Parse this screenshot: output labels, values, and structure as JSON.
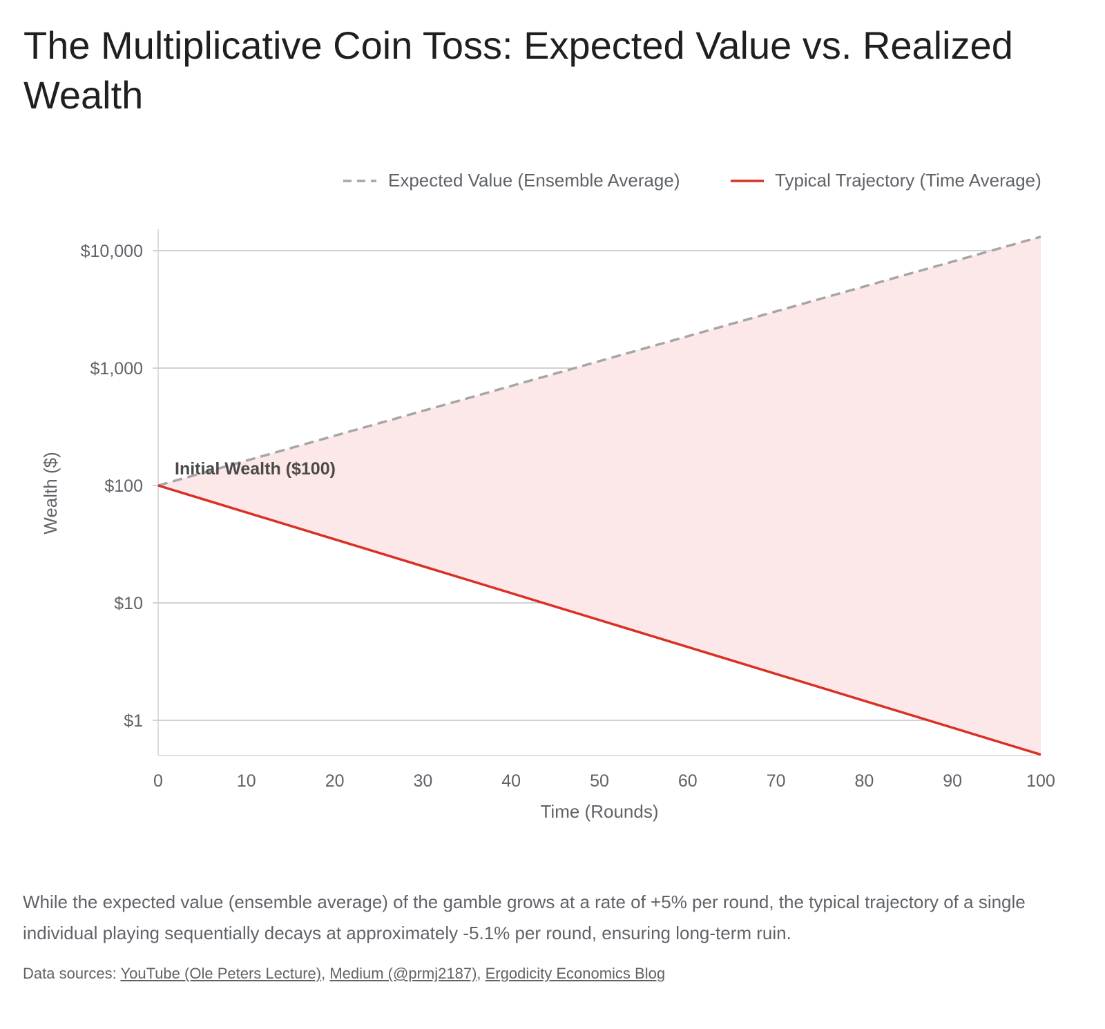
{
  "title": "The Multiplicative Coin Toss: Expected Value vs. Realized Wealth",
  "caption": "While the expected value (ensemble average) of the gamble grows at a rate of +5% per round, the typical trajectory of a single individual playing sequentially decays at approximately -5.1% per round, ensuring long-term ruin.",
  "sources": {
    "prefix": "Data sources: ",
    "links": [
      {
        "label": "YouTube (Ole Peters Lecture)"
      },
      {
        "label": "Medium (@prmj2187)"
      },
      {
        "label": "Ergodicity Economics Blog"
      }
    ]
  },
  "colors": {
    "expected": "#a6a6a6",
    "typical": "#d93025",
    "fill": "#fce8e8",
    "grid": "#c4c4c4"
  },
  "chart_data": {
    "type": "line",
    "title": "",
    "xlabel": "Time (Rounds)",
    "ylabel": "Wealth ($)",
    "xlim": [
      0,
      100
    ],
    "ylim": [
      0.5,
      15000
    ],
    "yscale": "log",
    "xticks": [
      0,
      10,
      20,
      30,
      40,
      50,
      60,
      70,
      80,
      90,
      100
    ],
    "yticks": [
      {
        "value": 1,
        "label": "$1"
      },
      {
        "value": 10,
        "label": "$10"
      },
      {
        "value": 100,
        "label": "$100"
      },
      {
        "value": 1000,
        "label": "$1,000"
      },
      {
        "value": 10000,
        "label": "$10,000"
      }
    ],
    "grid": true,
    "legend_position": "top-right",
    "series": [
      {
        "name": "Expected Value (Ensemble Average)",
        "style": "dashed",
        "color": "#a6a6a6",
        "x": [
          0,
          100
        ],
        "y": [
          100,
          13150
        ]
      },
      {
        "name": "Typical Trajectory (Time Average)",
        "style": "solid",
        "color": "#d93025",
        "x": [
          0,
          100
        ],
        "y": [
          100,
          0.51
        ]
      }
    ],
    "shaded_region": {
      "between": [
        "Expected Value (Ensemble Average)",
        "Typical Trajectory (Time Average)"
      ]
    },
    "annotations": [
      {
        "text": "Initial Wealth ($100)",
        "x": 0,
        "y": 100
      }
    ]
  }
}
